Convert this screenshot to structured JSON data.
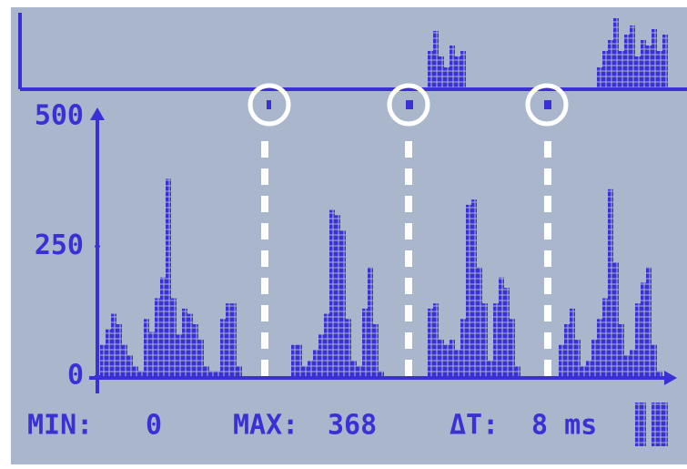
{
  "chart_data": {
    "type": "bar",
    "color": "#3b30d6",
    "values": [
      60,
      90,
      120,
      100,
      60,
      40,
      20,
      10,
      110,
      85,
      150,
      190,
      380,
      150,
      80,
      130,
      120,
      100,
      70,
      20,
      10,
      10,
      110,
      140,
      140,
      20,
      0,
      0,
      0,
      0,
      0,
      0,
      0,
      0,
      0,
      60,
      60,
      20,
      30,
      50,
      80,
      120,
      320,
      310,
      280,
      110,
      30,
      20,
      130,
      210,
      100,
      10,
      0,
      0,
      0,
      0,
      0,
      0,
      0,
      0,
      130,
      140,
      70,
      60,
      70,
      50,
      110,
      330,
      340,
      210,
      140,
      30,
      140,
      190,
      170,
      110,
      20,
      0,
      0,
      0,
      0,
      0,
      0,
      0,
      60,
      100,
      130,
      70,
      20,
      30,
      70,
      110,
      150,
      360,
      220,
      100,
      40,
      50,
      140,
      180,
      210,
      60,
      10
    ],
    "ylim": [
      0,
      500
    ],
    "yticks": [
      0,
      250,
      500
    ],
    "footer": {
      "min_label": "MIN:",
      "min_value": "0",
      "max_label": "MAX:",
      "max_value": "368",
      "dt_label": "ΔT:",
      "dt_value": "8 ms"
    }
  }
}
